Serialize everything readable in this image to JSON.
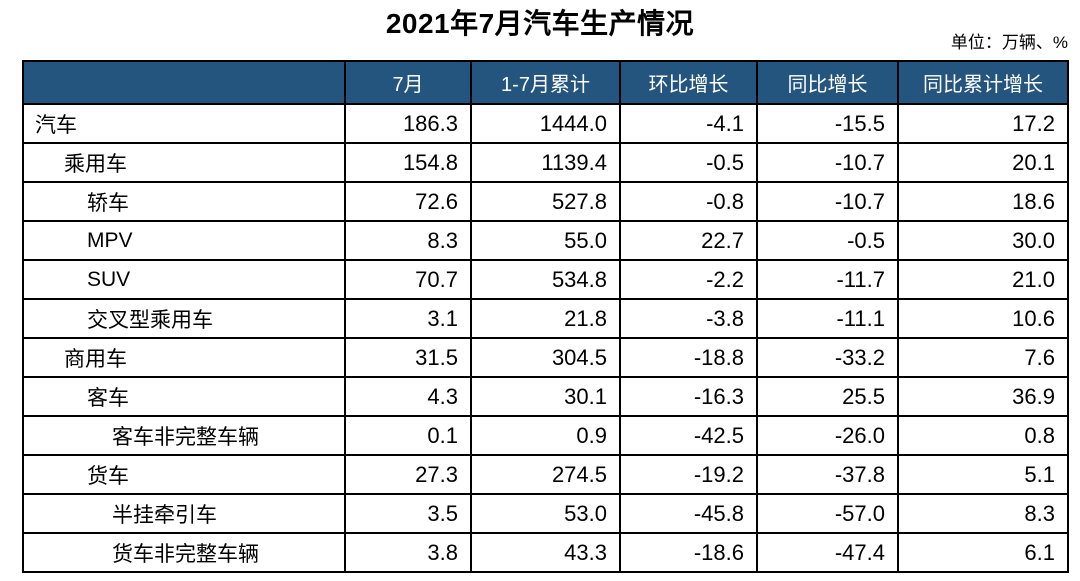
{
  "title": "2021年7月汽车生产情况",
  "unit_note": "单位：万辆、%",
  "colors": {
    "header_bg": "#24557F",
    "header_text": "#FFFFFF",
    "total_row_bg": "#BDD7EE",
    "group_row_bg": "#D9D9D9",
    "grid_line": "#000000"
  },
  "chart_data": {
    "type": "table",
    "title": "2021年7月汽车生产情况",
    "unit": "单位：万辆、%",
    "columns": [
      "7月",
      "1-7月累计",
      "环比增长",
      "同比增长",
      "同比累计增长"
    ],
    "corner_label": "",
    "rows": [
      {
        "label": "汽车",
        "indent": 0,
        "style": "total",
        "values": [
          "186.3",
          "1444.0",
          "-4.1",
          "-15.5",
          "17.2"
        ]
      },
      {
        "label": "乘用车",
        "indent": 1,
        "style": "group",
        "values": [
          "154.8",
          "1139.4",
          "-0.5",
          "-10.7",
          "20.1"
        ]
      },
      {
        "label": "轿车",
        "indent": 2,
        "style": "plain",
        "values": [
          "72.6",
          "527.8",
          "-0.8",
          "-10.7",
          "18.6"
        ]
      },
      {
        "label": "MPV",
        "indent": 2,
        "style": "plain",
        "values": [
          "8.3",
          "55.0",
          "22.7",
          "-0.5",
          "30.0"
        ]
      },
      {
        "label": "SUV",
        "indent": 2,
        "style": "plain",
        "values": [
          "70.7",
          "534.8",
          "-2.2",
          "-11.7",
          "21.0"
        ]
      },
      {
        "label": "交叉型乘用车",
        "indent": 2,
        "style": "plain",
        "values": [
          "3.1",
          "21.8",
          "-3.8",
          "-11.1",
          "10.6"
        ]
      },
      {
        "label": "商用车",
        "indent": 1,
        "style": "group",
        "values": [
          "31.5",
          "304.5",
          "-18.8",
          "-33.2",
          "7.6"
        ]
      },
      {
        "label": "客车",
        "indent": 2,
        "style": "plain",
        "values": [
          "4.3",
          "30.1",
          "-16.3",
          "25.5",
          "36.9"
        ]
      },
      {
        "label": "客车非完整车辆",
        "indent": 3,
        "style": "plain",
        "values": [
          "0.1",
          "0.9",
          "-42.5",
          "-26.0",
          "0.8"
        ]
      },
      {
        "label": "货车",
        "indent": 2,
        "style": "plain",
        "values": [
          "27.3",
          "274.5",
          "-19.2",
          "-37.8",
          "5.1"
        ]
      },
      {
        "label": "半挂牵引车",
        "indent": 3,
        "style": "plain",
        "values": [
          "3.5",
          "53.0",
          "-45.8",
          "-57.0",
          "8.3"
        ]
      },
      {
        "label": "货车非完整车辆",
        "indent": 3,
        "style": "plain",
        "values": [
          "3.8",
          "43.3",
          "-18.6",
          "-47.4",
          "6.1"
        ]
      }
    ]
  }
}
